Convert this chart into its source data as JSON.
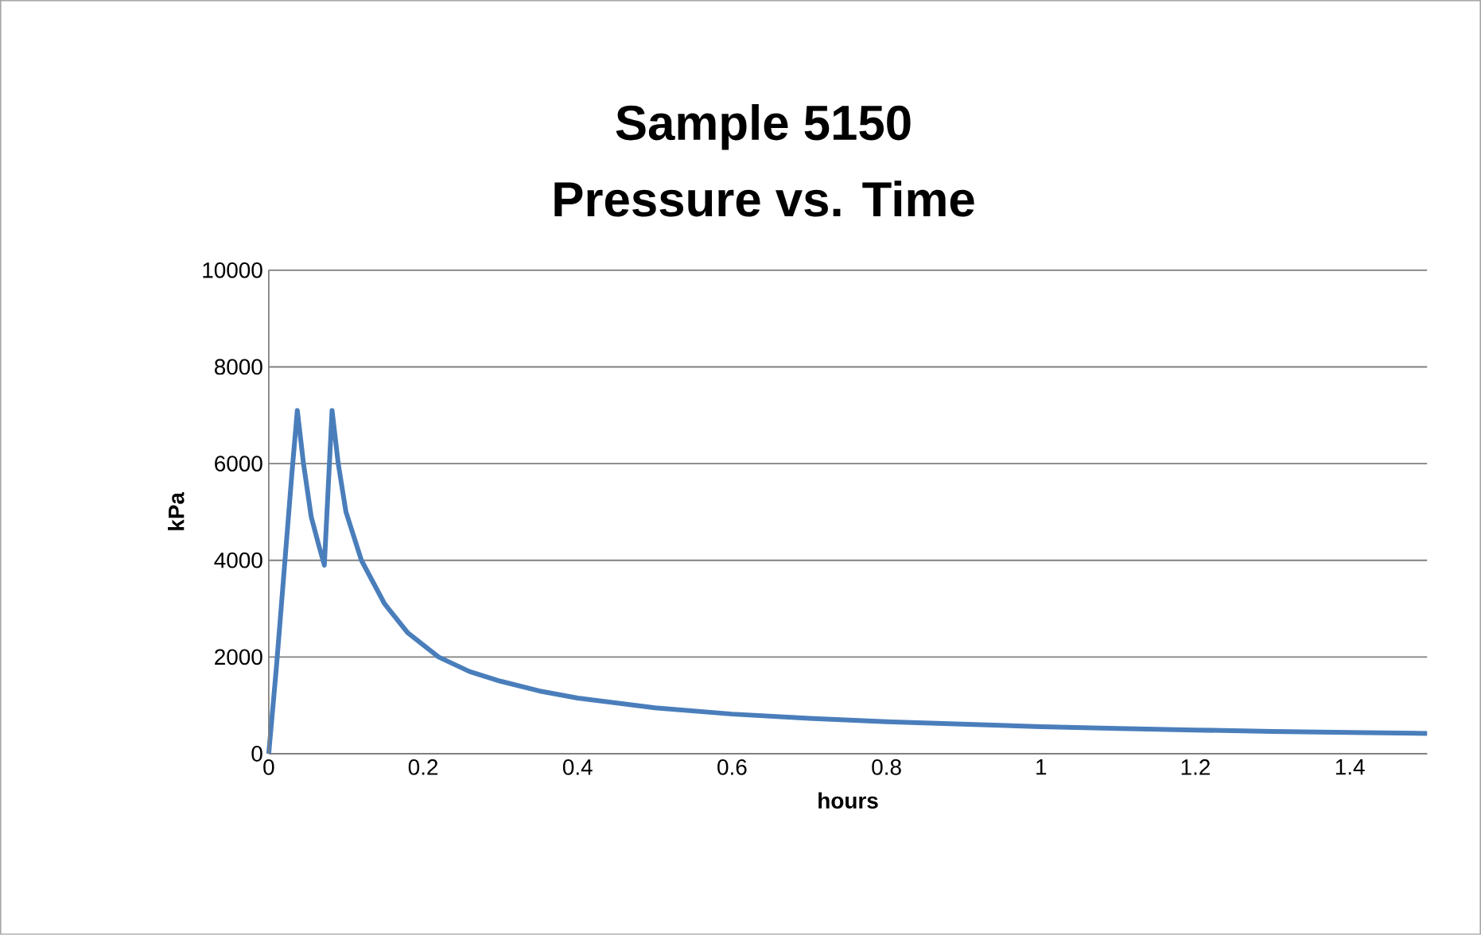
{
  "chart_data": {
    "type": "line",
    "title": "Sample 5150",
    "subtitle": "Pressure vs. Time",
    "xlabel": "hours",
    "ylabel": "kPa",
    "x": [
      0,
      0.01,
      0.02,
      0.03,
      0.037,
      0.045,
      0.055,
      0.065,
      0.072,
      0.077,
      0.082,
      0.09,
      0.1,
      0.12,
      0.15,
      0.18,
      0.22,
      0.26,
      0.3,
      0.35,
      0.4,
      0.5,
      0.6,
      0.7,
      0.8,
      0.9,
      1.0,
      1.1,
      1.2,
      1.3,
      1.4,
      1.5
    ],
    "series": [
      {
        "color": "#4a7ebb",
        "values": [
          0,
          1800,
          3800,
          5800,
          7100,
          6000,
          4900,
          4300,
          3900,
          5500,
          7100,
          6000,
          5000,
          4000,
          3100,
          2500,
          2000,
          1700,
          1500,
          1300,
          1150,
          950,
          820,
          730,
          660,
          610,
          560,
          520,
          490,
          460,
          440,
          420
        ]
      }
    ],
    "xlim": [
      0,
      1.5
    ],
    "ylim": [
      0,
      10000
    ],
    "xticks": [
      0,
      0.2,
      0.4,
      0.6,
      0.8,
      1,
      1.2,
      1.4
    ],
    "yticks": [
      0,
      2000,
      4000,
      6000,
      8000,
      10000
    ],
    "grid": "y",
    "marker": "none",
    "line_style": "solid"
  }
}
